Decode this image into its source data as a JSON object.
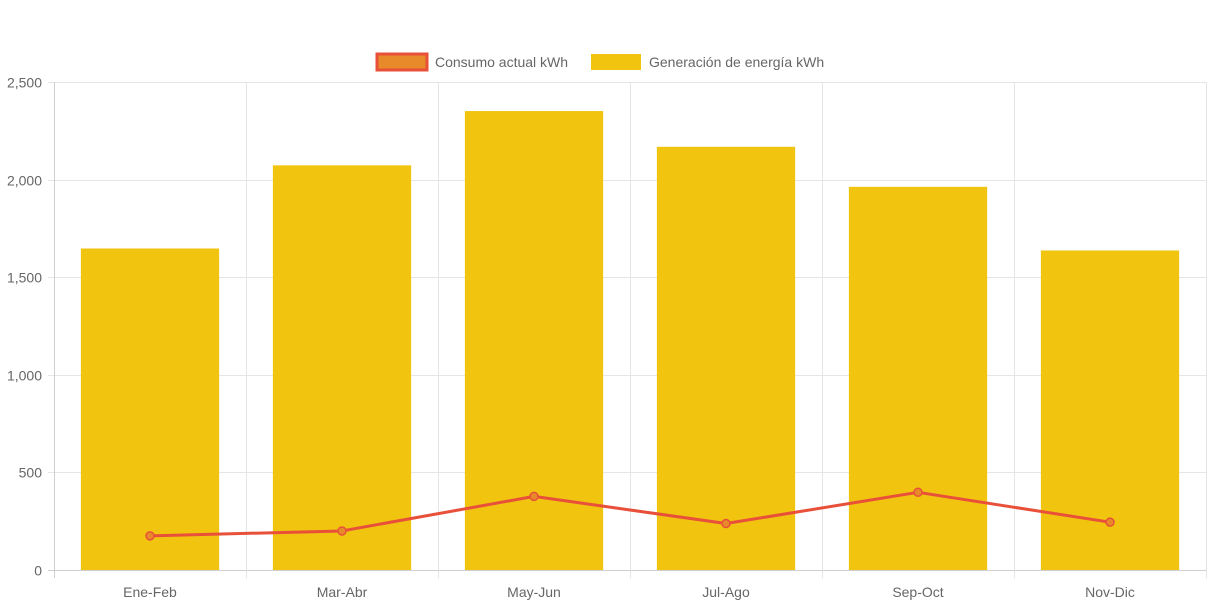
{
  "chart_data": {
    "type": "bar",
    "categories": [
      "Ene-Feb",
      "Mar-Abr",
      "May-Jun",
      "Jul-Ago",
      "Sep-Oct",
      "Nov-Dic"
    ],
    "series": [
      {
        "name": "Consumo actual kWh",
        "type": "line",
        "color": "#e8503a",
        "fill_color": "#e8892a",
        "values": [
          175,
          200,
          377,
          238,
          398,
          245
        ]
      },
      {
        "name": "Generación de energía kWh",
        "type": "bar",
        "color": "#f0c40f",
        "values": [
          1647,
          2073,
          2351,
          2168,
          1963,
          1637
        ]
      }
    ],
    "ylim": [
      0,
      2500
    ],
    "yticks": [
      0,
      500,
      1000,
      1500,
      2000,
      2500
    ],
    "ytick_labels": [
      "0",
      "500",
      "1,000",
      "1,500",
      "2,000",
      "2,500"
    ],
    "grid": true,
    "legend_position": "top-center"
  }
}
